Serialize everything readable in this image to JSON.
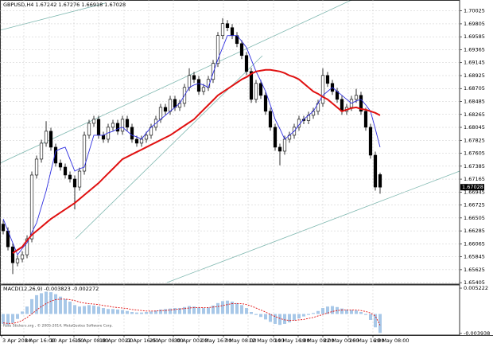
{
  "chart_data": [
    {
      "type": "candlestick",
      "title": "GBPUSD,H4 1.67242 1.67276 1.66918 1.67028",
      "open": [
        1.664,
        1.66285,
        1.66014,
        1.65743,
        1.65811,
        1.65879,
        1.6615,
        1.67234,
        1.67505,
        1.67776,
        1.67979,
        1.67708,
        1.67437,
        1.67369,
        1.67234,
        1.67166,
        1.6703,
        1.67301,
        1.67911,
        1.68114,
        1.68182,
        1.67911,
        1.67843,
        1.68047,
        1.68114,
        1.67979,
        1.68182,
        1.68047,
        1.67843,
        1.67776,
        1.67843,
        1.67911,
        1.68047,
        1.68182,
        1.68385,
        1.68318,
        1.68521,
        1.68385,
        1.68453,
        1.68724,
        1.68927,
        1.6886,
        1.68656,
        1.68724,
        1.6886,
        1.69131,
        1.69605,
        1.69808,
        1.6974,
        1.69605,
        1.69469,
        1.69266,
        1.68995,
        1.68521,
        1.68792,
        1.68589,
        1.68318,
        1.68047,
        1.67708,
        1.6764,
        1.67843,
        1.67911,
        1.68047,
        1.68182,
        1.6816,
        1.6825,
        1.68318,
        1.68453,
        1.68927,
        1.68792,
        1.68656,
        1.68521,
        1.68318,
        1.68385,
        1.68521,
        1.68589,
        1.68318,
        1.68047,
        1.67572,
        1.67242
      ],
      "high": [
        1.6646,
        1.66345,
        1.66074,
        1.65871,
        1.65939,
        1.6621,
        1.67294,
        1.67565,
        1.67836,
        1.6815,
        1.68039,
        1.67768,
        1.67497,
        1.67429,
        1.67294,
        1.67226,
        1.67361,
        1.67971,
        1.68174,
        1.68242,
        1.68242,
        1.67971,
        1.68107,
        1.68174,
        1.68174,
        1.68242,
        1.68242,
        1.68107,
        1.67903,
        1.67903,
        1.67971,
        1.68107,
        1.68242,
        1.68445,
        1.68445,
        1.68581,
        1.68581,
        1.68513,
        1.68784,
        1.6905,
        1.68987,
        1.6892,
        1.68784,
        1.6892,
        1.69191,
        1.69665,
        1.699,
        1.69868,
        1.698,
        1.69665,
        1.69529,
        1.69326,
        1.69055,
        1.68852,
        1.68852,
        1.68649,
        1.68378,
        1.68107,
        1.67768,
        1.67903,
        1.67971,
        1.68107,
        1.68242,
        1.68242,
        1.6831,
        1.68378,
        1.68513,
        1.6905,
        1.68987,
        1.68852,
        1.68716,
        1.68581,
        1.68445,
        1.68581,
        1.687,
        1.68649,
        1.68378,
        1.68107,
        1.67632,
        1.67276
      ],
      "low": [
        1.66225,
        1.65954,
        1.6555,
        1.65683,
        1.65751,
        1.65819,
        1.6609,
        1.67174,
        1.67445,
        1.67716,
        1.67648,
        1.67377,
        1.67309,
        1.67174,
        1.67106,
        1.6665,
        1.6697,
        1.67241,
        1.67851,
        1.68054,
        1.67851,
        1.67783,
        1.67783,
        1.67987,
        1.67919,
        1.67919,
        1.67987,
        1.67783,
        1.67716,
        1.67716,
        1.67783,
        1.67851,
        1.67987,
        1.68122,
        1.68258,
        1.68258,
        1.68325,
        1.68325,
        1.68393,
        1.68664,
        1.688,
        1.68596,
        1.68596,
        1.68664,
        1.688,
        1.69071,
        1.69545,
        1.6968,
        1.69545,
        1.69409,
        1.69206,
        1.68935,
        1.68461,
        1.68461,
        1.68529,
        1.68258,
        1.67987,
        1.67648,
        1.674,
        1.6758,
        1.67783,
        1.67851,
        1.67987,
        1.681,
        1.681,
        1.6819,
        1.68258,
        1.68393,
        1.68732,
        1.68596,
        1.68461,
        1.68258,
        1.68258,
        1.68325,
        1.68461,
        1.68258,
        1.67987,
        1.67512,
        1.6697,
        1.66918
      ],
      "close": [
        1.66285,
        1.66014,
        1.65743,
        1.65811,
        1.65879,
        1.6615,
        1.67234,
        1.67505,
        1.67776,
        1.67979,
        1.67708,
        1.67437,
        1.67369,
        1.67234,
        1.67166,
        1.6703,
        1.67301,
        1.67911,
        1.68114,
        1.68182,
        1.67911,
        1.67843,
        1.68047,
        1.68114,
        1.67979,
        1.68182,
        1.68047,
        1.67843,
        1.67776,
        1.67843,
        1.67911,
        1.68047,
        1.68182,
        1.68385,
        1.68318,
        1.68521,
        1.68385,
        1.68453,
        1.68724,
        1.68927,
        1.6886,
        1.68656,
        1.68724,
        1.6886,
        1.69131,
        1.69605,
        1.69808,
        1.6974,
        1.69605,
        1.69469,
        1.69266,
        1.68995,
        1.68521,
        1.68792,
        1.68589,
        1.68318,
        1.68047,
        1.67708,
        1.6764,
        1.67843,
        1.67911,
        1.68047,
        1.68182,
        1.6816,
        1.6825,
        1.68318,
        1.68453,
        1.68927,
        1.68792,
        1.68656,
        1.68521,
        1.68318,
        1.68385,
        1.68521,
        1.68589,
        1.68318,
        1.68047,
        1.67572,
        1.6703,
        1.67028
      ],
      "color_up": "#ffffff",
      "color_down": "#000000",
      "series": [
        {
          "color": "#3030e0",
          "values": [
            1.66488,
            1.66285,
            1.66082,
            1.65879,
            1.65987,
            1.66082,
            1.66258,
            1.66421,
            1.66692,
            1.66963,
            1.67301,
            1.6764,
            1.67681,
            1.67708,
            1.67505,
            1.67301,
            1.67342,
            1.67369,
            1.6764,
            1.67911,
            1.67911,
            1.67911,
            1.67952,
            1.67979,
            1.6802,
            1.68047,
            1.67979,
            1.67911,
            1.67884,
            1.67843,
            1.67952,
            1.68047,
            1.68114,
            1.68182,
            1.6825,
            1.68318,
            1.68385,
            1.68453,
            1.68589,
            1.68724,
            1.68765,
            1.68792,
            1.68765,
            1.68724,
            1.68968,
            1.69198,
            1.69402,
            1.69605,
            1.69605,
            1.69605,
            1.6951,
            1.69402,
            1.69198,
            1.68995,
            1.68833,
            1.68656,
            1.68426,
            1.68182,
            1.6802,
            1.67843,
            1.67911,
            1.67979,
            1.68087,
            1.68182,
            1.6825,
            1.68318,
            1.68453,
            1.68589,
            1.68656,
            1.68724,
            1.68656,
            1.68589,
            1.68521,
            1.68453,
            1.68494,
            1.68521,
            1.68426,
            1.68318,
            1.6802,
            1.67708
          ]
        },
        {
          "color": "#e01010",
          "values": [
            null,
            null,
            1.65906,
            1.6596,
            1.66014,
            1.66123,
            1.66217,
            1.66285,
            1.66353,
            1.66421,
            1.66488,
            1.66543,
            1.66597,
            1.66651,
            1.66705,
            1.66759,
            1.66827,
            1.66895,
            1.66963,
            1.6703,
            1.67098,
            1.6718,
            1.67261,
            1.67342,
            1.67423,
            1.67505,
            1.67545,
            1.67586,
            1.67627,
            1.67667,
            1.67708,
            1.67749,
            1.67789,
            1.6783,
            1.67871,
            1.67911,
            1.67965,
            1.6802,
            1.68074,
            1.68128,
            1.68182,
            1.68264,
            1.68345,
            1.68426,
            1.68507,
            1.68589,
            1.68643,
            1.68697,
            1.68751,
            1.68806,
            1.6886,
            1.689,
            1.68955,
            1.68995,
            1.69009,
            1.69022,
            1.69022,
            1.69009,
            1.68995,
            1.68968,
            1.68927,
            1.689,
            1.6886,
            1.68792,
            1.68724,
            1.68656,
            1.68616,
            1.68562,
            1.68521,
            1.68453,
            1.68385,
            1.68318,
            1.68345,
            1.68372,
            1.68385,
            1.68358,
            1.68345,
            1.68318,
            1.68291,
            1.6825
          ]
        }
      ],
      "current_price": 1.67028,
      "ylim": [
        1.6538,
        1.7021
      ],
      "yticks": [
        1.70025,
        1.69805,
        1.69585,
        1.69365,
        1.69145,
        1.68925,
        1.68705,
        1.68485,
        1.68265,
        1.68045,
        1.67825,
        1.67605,
        1.67385,
        1.67165,
        1.66945,
        1.66725,
        1.66505,
        1.66285,
        1.66065,
        1.65845,
        1.65625,
        1.65405
      ],
      "xlim": [
        -0.67,
        95.67
      ],
      "xticks": [
        {
          "value": -0.33,
          "label": "3 Apr 2014"
        },
        {
          "value": 4.33,
          "label": "8 Apr 16:00"
        },
        {
          "value": 9.67,
          "label": "10 Apr 16:00"
        },
        {
          "value": 14.83,
          "label": "15 Apr 08:00"
        },
        {
          "value": 20,
          "label": "18 Apr 00:00"
        },
        {
          "value": 25.33,
          "label": "22 Apr 16:00"
        },
        {
          "value": 30.5,
          "label": "25 Apr 08:00"
        },
        {
          "value": 35.67,
          "label": "30 Apr 00:00"
        },
        {
          "value": 41,
          "label": "2 May 16:00"
        },
        {
          "value": 46.17,
          "label": "7 May 08:00"
        },
        {
          "value": 51.33,
          "label": "12 May 00:00"
        },
        {
          "value": 56.67,
          "label": "14 May 16:00"
        },
        {
          "value": 61.83,
          "label": "19 May 08:00"
        },
        {
          "value": 67,
          "label": "22 May 00:00"
        },
        {
          "value": 72.33,
          "label": "26 May 16:00"
        },
        {
          "value": 77.5,
          "label": "29 May 08:00"
        }
      ],
      "grid": true
    },
    {
      "type": "macd",
      "title": "MACD(12,26,9) -0.003823 -0.002272",
      "caption": "Rate Stickers.org , © 2005-2014, MetaQuotes Software Corp.",
      "color": "#a8c8e8",
      "values": [
        -0.002,
        -0.0022,
        -0.0018,
        -0.001,
        0.0005,
        0.0015,
        0.003,
        0.0038,
        0.0042,
        0.0045,
        0.0044,
        0.004,
        0.0035,
        0.003,
        0.0025,
        0.0018,
        0.0015,
        0.0016,
        0.0018,
        0.0017,
        0.0015,
        0.0012,
        0.001,
        0.001,
        0.0009,
        0.0008,
        0.0006,
        0.0004,
        0.0003,
        0.0003,
        0.0004,
        0.0005,
        0.0007,
        0.0009,
        0.001,
        0.0011,
        0.0012,
        0.0012,
        0.0014,
        0.0016,
        0.0015,
        0.0013,
        0.0012,
        0.0013,
        0.0017,
        0.0022,
        0.0026,
        0.0027,
        0.0025,
        0.0022,
        0.0018,
        0.0012,
        0.0004,
        -0.0002,
        -0.0006,
        -0.0011,
        -0.0016,
        -0.002,
        -0.0022,
        -0.002,
        -0.0017,
        -0.0013,
        -0.0009,
        -0.0005,
        -0.0002,
        0.0002,
        0.0006,
        0.0012,
        0.0015,
        0.0016,
        0.0014,
        0.0011,
        0.0009,
        0.0008,
        0.0007,
        0.0004,
        -0.0002,
        -0.0012,
        -0.0027,
        -0.003823
      ],
      "series": [
        {
          "color": "#e01010",
          "values": [
            -0.0018,
            -0.0019,
            -0.0019,
            -0.0017,
            -0.0013,
            -0.0007,
            0.0,
            0.0008,
            0.0015,
            0.0021,
            0.0026,
            0.0029,
            0.003,
            0.003,
            0.0029,
            0.0027,
            0.0024,
            0.0022,
            0.0021,
            0.002,
            0.0019,
            0.0017,
            0.0016,
            0.0014,
            0.0013,
            0.0012,
            0.0011,
            0.0009,
            0.0008,
            0.0007,
            0.0006,
            0.0006,
            0.0006,
            0.0007,
            0.0007,
            0.0008,
            0.0009,
            0.001,
            0.0011,
            0.0012,
            0.0013,
            0.0013,
            0.0013,
            0.0013,
            0.0014,
            0.0015,
            0.0017,
            0.0019,
            0.0021,
            0.0021,
            0.0021,
            0.0019,
            0.0016,
            0.0012,
            0.0008,
            0.0004,
            -0.0001,
            -0.0005,
            -0.0009,
            -0.0012,
            -0.0013,
            -0.0013,
            -0.0012,
            -0.0011,
            -0.0009,
            -0.0007,
            -0.0004,
            -0.0001,
            0.0002,
            0.0005,
            0.0007,
            0.0008,
            0.0008,
            0.0008,
            0.0008,
            0.0007,
            0.0005,
            0.0002,
            -0.0004,
            -0.002272
          ]
        }
      ],
      "ylim": [
        -0.00426,
        0.00603
      ],
      "yticks": [
        0.005222,
        -0.003938
      ],
      "xlim": [
        -0.67,
        95.67
      ]
    }
  ]
}
